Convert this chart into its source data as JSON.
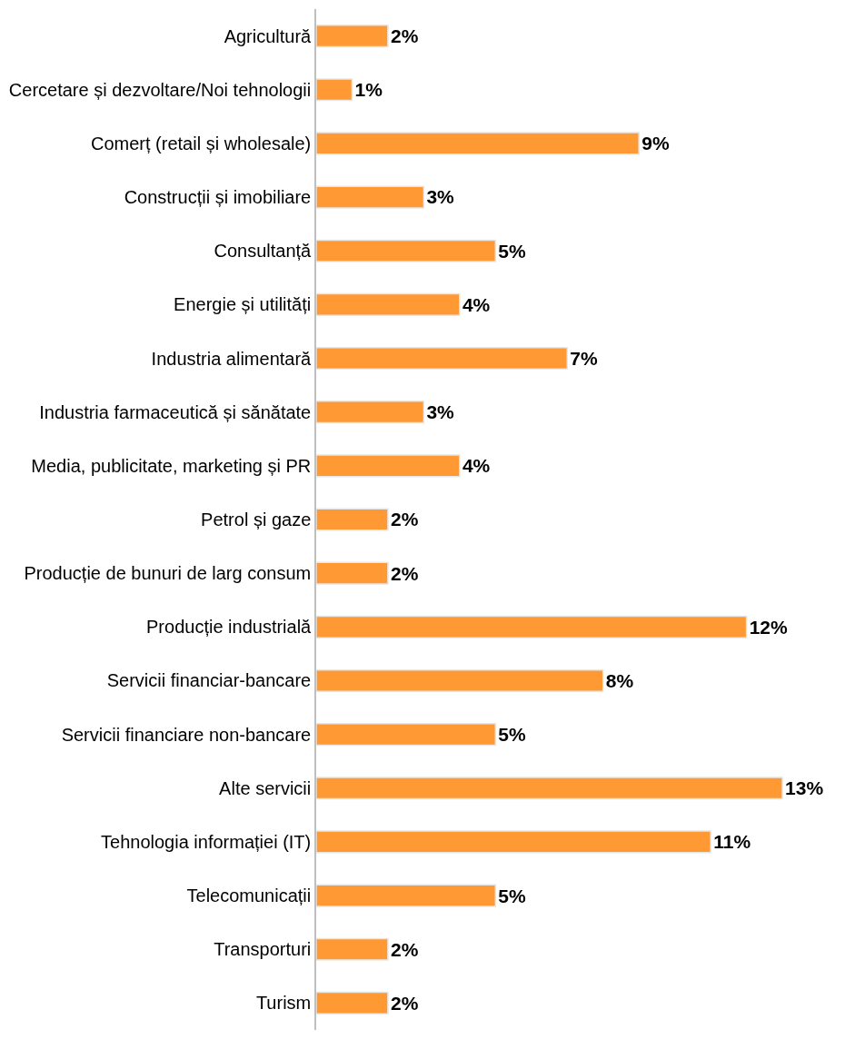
{
  "chart_data": {
    "type": "bar",
    "orientation": "horizontal",
    "tick_labels": "y",
    "value_labels": [
      "2%",
      "1%",
      "9%",
      "3%",
      "5%",
      "4%",
      "7%",
      "3%",
      "4%",
      "2%",
      "2%",
      "12%",
      "8%",
      "5%",
      "13%",
      "11%",
      "5%",
      "2%",
      "2%"
    ],
    "categories": [
      "Agricultură",
      "Cercetare și dezvoltare/Noi tehnologii",
      "Comerț (retail și wholesale)",
      "Construcții și imobiliare",
      "Consultanță",
      "Energie și utilități",
      "Industria alimentară",
      "Industria farmaceutică și sănătate",
      "Media, publicitate, marketing și PR",
      "Petrol și gaze",
      "Producție de bunuri de larg consum",
      "Producție industrială",
      "Servicii financiar-bancare",
      "Servicii financiare non-bancare",
      "Alte servicii",
      "Tehnologia informației (IT)",
      "Telecomunicații",
      "Transporturi",
      "Turism"
    ],
    "values": [
      2,
      1,
      9,
      3,
      5,
      4,
      7,
      3,
      4,
      2,
      2,
      12,
      8,
      5,
      13,
      11,
      5,
      2,
      2
    ],
    "color": "#ff9933"
  }
}
